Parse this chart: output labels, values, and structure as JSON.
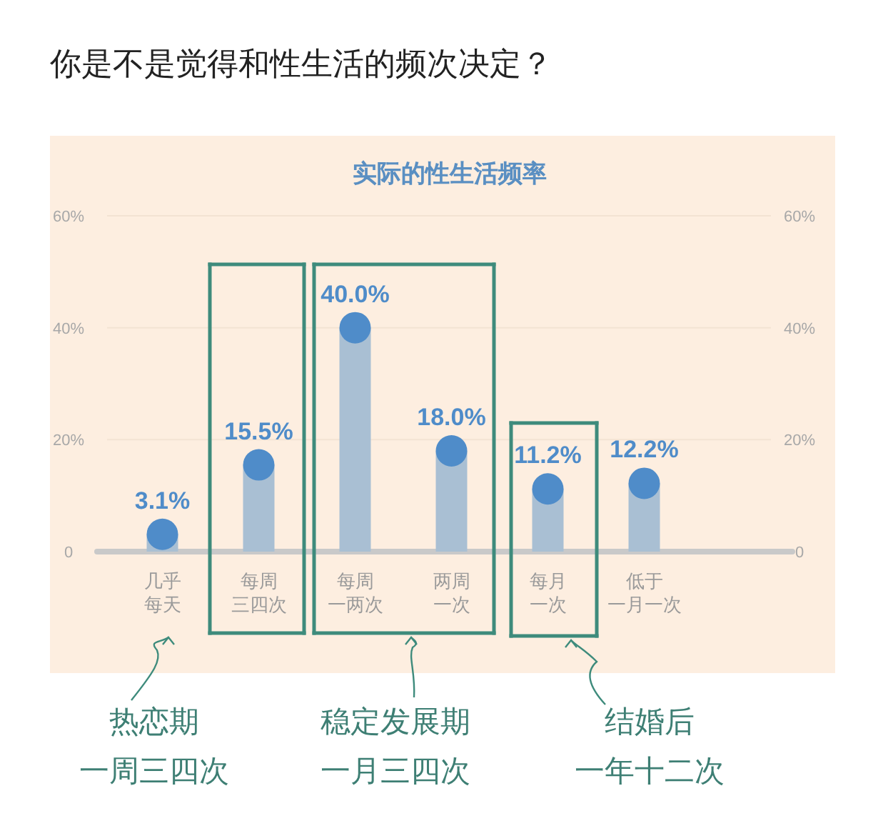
{
  "chart_data": {
    "type": "lollipop",
    "title": "实际的性生活频率",
    "subtitle": "你是不是觉得和性生活的频次决定？",
    "categories": [
      "几乎每天",
      "每周三四次",
      "每周一两次",
      "两周一次",
      "每月一次",
      "低于一月一次"
    ],
    "values": [
      3.1,
      15.5,
      40.0,
      18.0,
      11.2,
      12.2
    ],
    "value_labels": [
      "3.1%",
      "15.5%",
      "40.0%",
      "18.0%",
      "11.2%",
      "12.2%"
    ],
    "color": "#4f8cc9",
    "ylim": [
      0,
      60
    ],
    "yticks": [
      {
        "value": 0,
        "label": "0"
      },
      {
        "value": 20,
        "label": "20%"
      },
      {
        "value": 40,
        "label": "40%"
      },
      {
        "value": 60,
        "label": "60%"
      }
    ],
    "y2lim": [
      0,
      60
    ],
    "y2ticks": [
      {
        "value": 0,
        "label": "0"
      },
      {
        "value": 20,
        "label": "20%"
      },
      {
        "value": 40,
        "label": "40%"
      },
      {
        "value": 60,
        "label": "60%"
      }
    ],
    "grid": "y",
    "annotations": [
      "热恋期一周三四次",
      "稳定发展期一月三四次",
      "结婚后一年十二次"
    ]
  }
}
